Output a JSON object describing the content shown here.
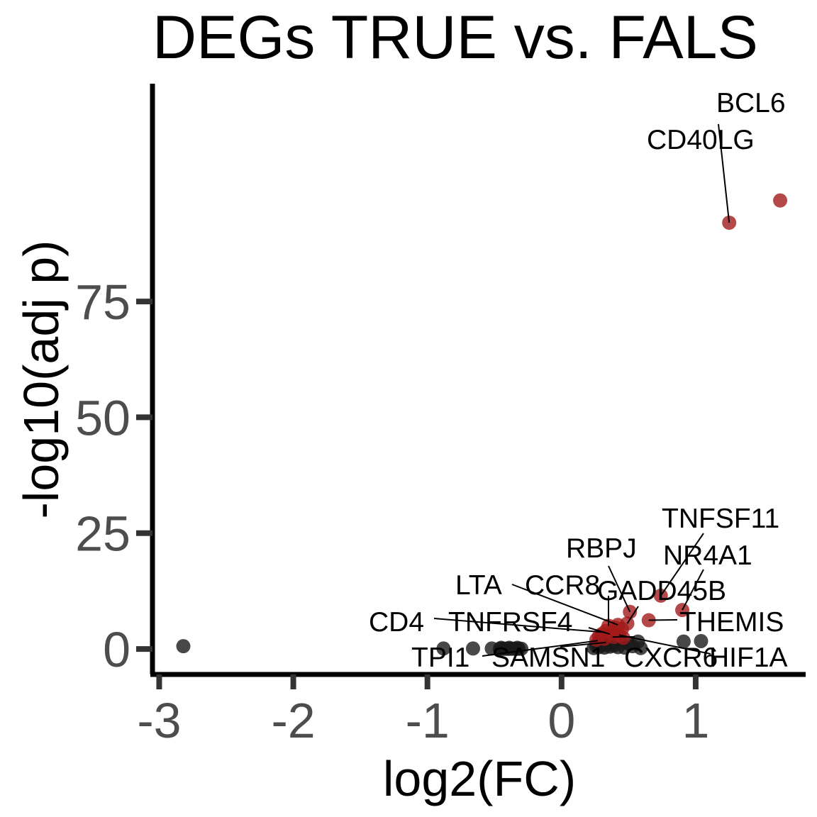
{
  "chart_data": {
    "type": "scatter",
    "title": "DEGs TRUE vs. FALS",
    "xlabel": "log2(FC)",
    "ylabel": "-log10(adj p)",
    "xlim": [
      -3.05,
      1.82
    ],
    "ylim": [
      -5.5,
      122
    ],
    "xticks": [
      -3,
      -2,
      -1,
      0,
      1
    ],
    "xtick_labels": [
      "-3",
      "-2",
      "-1",
      "0",
      "1"
    ],
    "yticks": [
      0,
      25,
      50,
      75
    ],
    "ytick_labels": [
      "0",
      "25",
      "50",
      "75"
    ],
    "grid": false,
    "legend": "none",
    "colors": {
      "significant": "#a31a1a",
      "not_significant": "#1a1a1a",
      "axis": "#000000",
      "tick_text": "#4d4d4d"
    },
    "series": [
      {
        "points": [
          [
            -2.82,
            0.6
          ],
          [
            -0.88,
            0.1
          ],
          [
            -0.66,
            0.1
          ],
          [
            -0.52,
            0.1
          ],
          [
            -0.46,
            0.05
          ],
          [
            -0.44,
            0.05
          ],
          [
            -0.42,
            0.05
          ],
          [
            -0.4,
            0.05
          ],
          [
            -0.38,
            0.05
          ],
          [
            -0.36,
            0.05
          ],
          [
            -0.34,
            0.05
          ],
          [
            -0.32,
            0.05
          ],
          [
            -0.3,
            0.05
          ],
          [
            -0.45,
            0.25
          ],
          [
            -0.39,
            0.25
          ],
          [
            -0.33,
            0.25
          ],
          [
            0.24,
            0.2
          ],
          [
            0.26,
            0.6
          ],
          [
            0.27,
            1.2
          ],
          [
            0.28,
            0.4
          ],
          [
            0.29,
            1.6
          ],
          [
            0.3,
            0.8
          ],
          [
            0.31,
            2.0
          ],
          [
            0.32,
            0.3
          ],
          [
            0.33,
            1.4
          ],
          [
            0.34,
            0.9
          ],
          [
            0.35,
            2.2
          ],
          [
            0.36,
            0.5
          ],
          [
            0.37,
            1.8
          ],
          [
            0.38,
            1.1
          ],
          [
            0.39,
            0.7
          ],
          [
            0.4,
            1.6
          ],
          [
            0.42,
            0.4
          ],
          [
            0.44,
            1.3
          ],
          [
            0.47,
            0.3
          ],
          [
            0.5,
            1.1
          ],
          [
            0.53,
            0.6
          ],
          [
            0.57,
            1.6
          ],
          [
            0.59,
            0.2
          ],
          [
            0.91,
            1.6
          ],
          [
            1.04,
            1.7
          ]
        ]
      },
      {
        "points": [
          [
            1.63,
            96.8
          ],
          [
            1.25,
            92.0
          ],
          [
            0.74,
            11.5
          ],
          [
            0.9,
            8.4
          ],
          [
            0.51,
            8.0
          ],
          [
            0.65,
            6.2
          ],
          [
            0.49,
            5.5
          ],
          [
            0.42,
            5.2
          ],
          [
            0.35,
            5.0
          ],
          [
            0.4,
            4.6
          ],
          [
            0.45,
            4.3
          ],
          [
            0.33,
            3.9
          ],
          [
            0.37,
            3.5
          ],
          [
            0.3,
            3.2
          ],
          [
            0.43,
            3.0
          ],
          [
            0.28,
            2.8
          ],
          [
            0.39,
            2.6
          ],
          [
            0.46,
            2.4
          ],
          [
            0.32,
            2.2
          ],
          [
            0.26,
            2.0
          ]
        ]
      }
    ],
    "annotations": [
      {
        "label": "BCL6",
        "point": [
          1.25,
          92.0
        ]
      },
      {
        "label": "CD40LG",
        "point": [
          1.63,
          96.8
        ]
      },
      {
        "label": "TNFSF11",
        "point": [
          0.74,
          11.5
        ]
      },
      {
        "label": "NR4A1",
        "point": [
          0.9,
          8.4
        ]
      },
      {
        "label": "RBPJ",
        "point": [
          0.51,
          8.0
        ]
      },
      {
        "label": "GADD45B",
        "point": [
          0.49,
          5.5
        ]
      },
      {
        "label": "LTA",
        "point": [
          0.42,
          5.2
        ]
      },
      {
        "label": "CCR8",
        "point": [
          0.35,
          5.0
        ]
      },
      {
        "label": "THEMIS",
        "point": [
          0.65,
          6.2
        ]
      },
      {
        "label": "CD4",
        "point": [
          0.32,
          3.6
        ]
      },
      {
        "label": "TNFRSF4",
        "point": [
          0.36,
          3.2
        ]
      },
      {
        "label": "TPI1",
        "point": [
          0.27,
          1.8
        ]
      },
      {
        "label": "SAMSN1",
        "point": [
          0.33,
          1.4
        ]
      },
      {
        "label": "CXCR6",
        "point": [
          0.38,
          2.6
        ]
      },
      {
        "label": "HIF1A",
        "point": [
          0.43,
          3.0
        ]
      }
    ]
  }
}
